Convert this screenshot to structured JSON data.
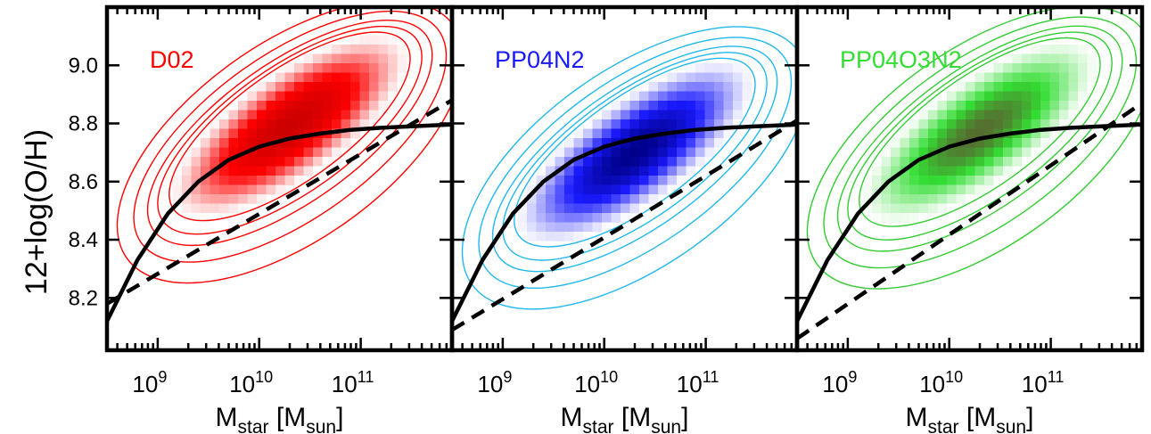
{
  "chart_data": {
    "type": "scatter",
    "layout": "three side-by-side panels sharing the y axis",
    "ylabel": "12+log(O/H)",
    "yticks": [
      8.2,
      8.4,
      8.6,
      8.8,
      9.0
    ],
    "ylim": [
      8.02,
      9.2
    ],
    "x_scale": "log",
    "xlim": [
      8.5,
      11.9
    ],
    "xtick_labels": [
      {
        "exp": 9,
        "text": "10",
        "sup": "9"
      },
      {
        "exp": 10,
        "text": "10",
        "sup": "10"
      },
      {
        "exp": 11,
        "text": "10",
        "sup": "11"
      }
    ],
    "xlabel": {
      "main": "M",
      "sub1": "star",
      "mid": " [M",
      "sub2": "sun",
      "end": "]"
    },
    "grid": false,
    "solid_curve": {
      "log_mass": [
        8.5,
        8.8,
        9.1,
        9.4,
        9.7,
        10.0,
        10.3,
        10.6,
        10.9,
        11.2,
        11.5,
        11.9
      ],
      "value": [
        8.12,
        8.33,
        8.49,
        8.6,
        8.675,
        8.72,
        8.748,
        8.765,
        8.778,
        8.785,
        8.79,
        8.796
      ]
    },
    "panels": [
      {
        "label": "D02",
        "color": "#ff0000",
        "density_peak": "#cc0000",
        "peak": {
          "log_mass": 10.3,
          "value": 8.79
        },
        "dashed_line": {
          "log_mass": [
            8.5,
            11.9
          ],
          "value": [
            8.18,
            8.88
          ]
        }
      },
      {
        "label": "PP04N2",
        "color": "#1a1aff",
        "contour_color": "#22b8ee",
        "density_peak": "#00008b",
        "peak": {
          "log_mass": 10.3,
          "value": 8.7
        },
        "dashed_line": {
          "log_mass": [
            8.5,
            11.9
          ],
          "value": [
            8.09,
            8.81
          ]
        }
      },
      {
        "label": "PP04O3N2",
        "color": "#33dd33",
        "contour_color": "#33cc33",
        "density_peak": "#556b2f",
        "peak": {
          "log_mass": 10.3,
          "value": 8.77
        },
        "dashed_line": {
          "log_mass": [
            8.5,
            11.9
          ],
          "value": [
            8.06,
            8.87
          ]
        }
      }
    ]
  }
}
